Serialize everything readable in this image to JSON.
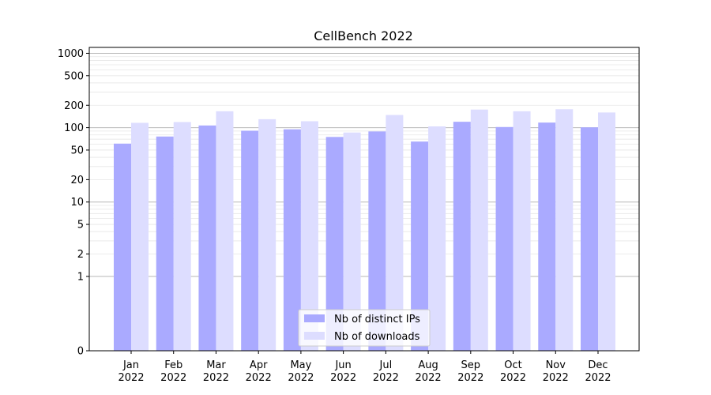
{
  "chart_data": {
    "type": "bar",
    "title": "CellBench 2022",
    "xlabel": "",
    "ylabel": "",
    "yscale": "symlog",
    "ylim": [
      0,
      1200
    ],
    "yticks": [
      {
        "value": 0,
        "label": "0"
      },
      {
        "value": 1,
        "label": "1"
      },
      {
        "value": 2,
        "label": "2"
      },
      {
        "value": 5,
        "label": "5"
      },
      {
        "value": 10,
        "label": "10"
      },
      {
        "value": 20,
        "label": "20"
      },
      {
        "value": 50,
        "label": "50"
      },
      {
        "value": 100,
        "label": "100"
      },
      {
        "value": 200,
        "label": "200"
      },
      {
        "value": 500,
        "label": "500"
      },
      {
        "value": 1000,
        "label": "1000"
      }
    ],
    "categories": [
      {
        "month": "Jan",
        "year": "2022"
      },
      {
        "month": "Feb",
        "year": "2022"
      },
      {
        "month": "Mar",
        "year": "2022"
      },
      {
        "month": "Apr",
        "year": "2022"
      },
      {
        "month": "May",
        "year": "2022"
      },
      {
        "month": "Jun",
        "year": "2022"
      },
      {
        "month": "Jul",
        "year": "2022"
      },
      {
        "month": "Aug",
        "year": "2022"
      },
      {
        "month": "Sep",
        "year": "2022"
      },
      {
        "month": "Oct",
        "year": "2022"
      },
      {
        "month": "Nov",
        "year": "2022"
      },
      {
        "month": "Dec",
        "year": "2022"
      }
    ],
    "series": [
      {
        "name": "Nb of distinct IPs",
        "color": "#aaaaff",
        "values": [
          61,
          76,
          107,
          91,
          95,
          75,
          89,
          65,
          120,
          102,
          117,
          101
        ]
      },
      {
        "name": "Nb of downloads",
        "color": "#ddddff",
        "values": [
          116,
          119,
          166,
          130,
          122,
          86,
          148,
          104,
          175,
          166,
          177,
          160
        ]
      }
    ],
    "grid": true,
    "legend_position": "bottom-center"
  }
}
